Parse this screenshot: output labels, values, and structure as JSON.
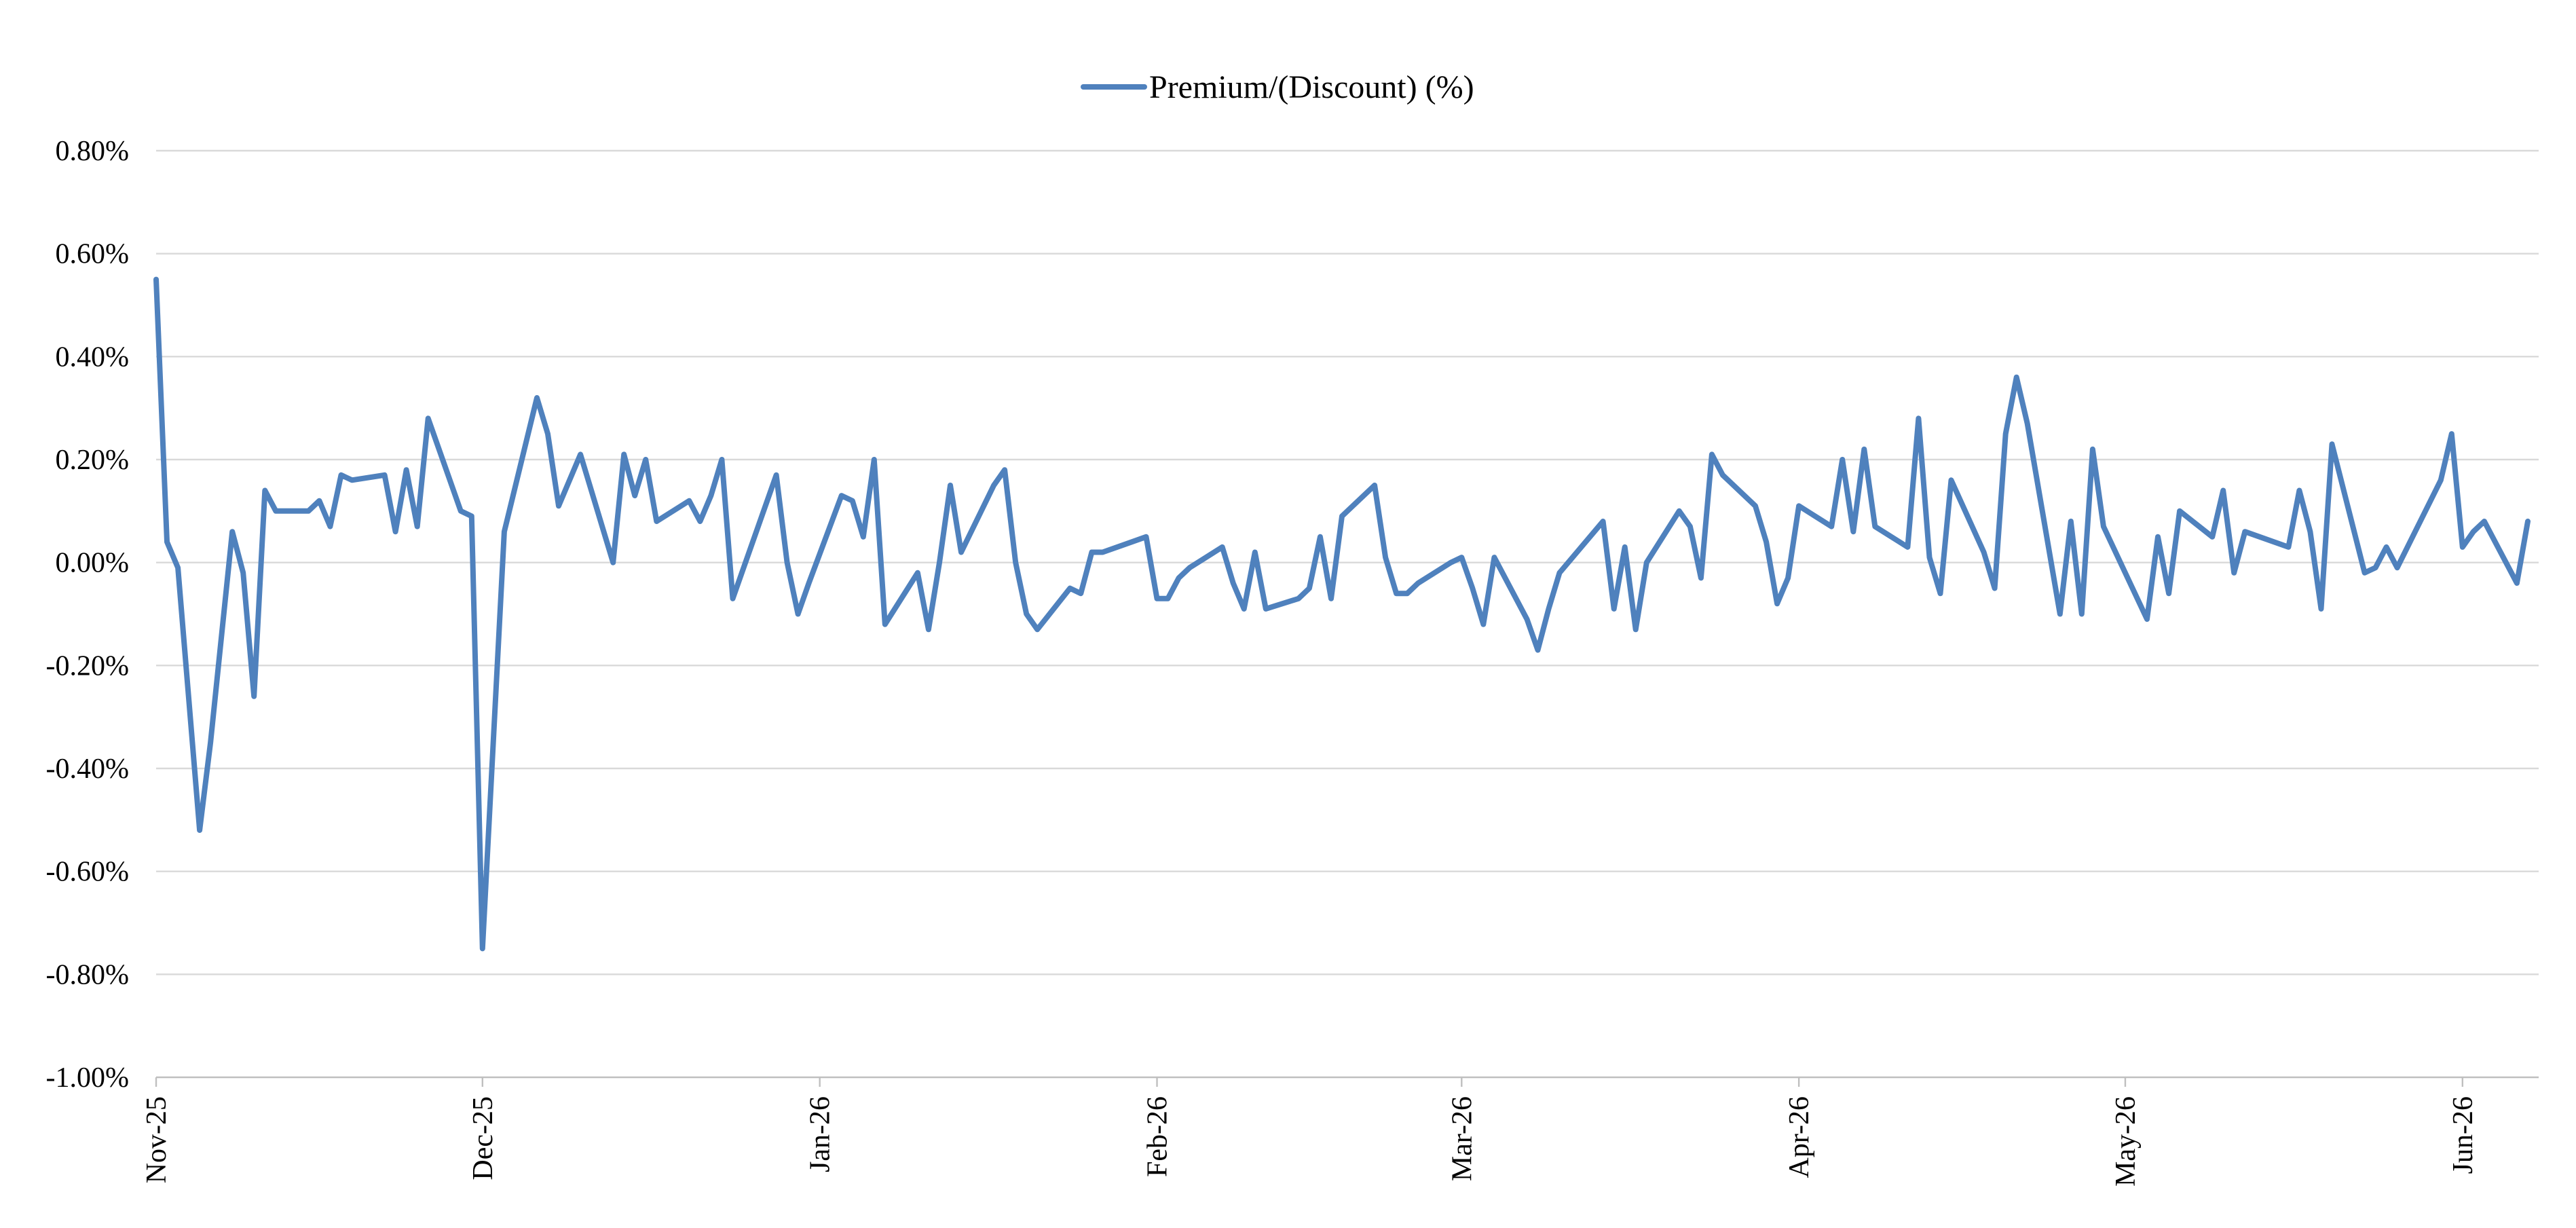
{
  "chart_data": {
    "type": "line",
    "title": "",
    "xlabel": "",
    "ylabel": "",
    "legend": {
      "position": "top-center",
      "entries": [
        "Premium/(Discount) (%)"
      ]
    },
    "series_color": "#4f81bd",
    "grid": true,
    "x_range": [
      "2025-11-01",
      "2026-06-08"
    ],
    "ylim": [
      -1.0,
      0.8
    ],
    "y_ticks": [
      {
        "value": 0.8,
        "label": "0.80%"
      },
      {
        "value": 0.6,
        "label": "0.60%"
      },
      {
        "value": 0.4,
        "label": "0.40%"
      },
      {
        "value": 0.2,
        "label": "0.20%"
      },
      {
        "value": 0.0,
        "label": "0.00%"
      },
      {
        "value": -0.2,
        "label": "-0.20%"
      },
      {
        "value": -0.4,
        "label": "-0.40%"
      },
      {
        "value": -0.6,
        "label": "-0.60%"
      },
      {
        "value": -0.8,
        "label": "-0.80%"
      },
      {
        "value": -1.0,
        "label": "-1.00%"
      }
    ],
    "x_ticks": [
      {
        "date": "2025-11-01",
        "label": "Nov-25"
      },
      {
        "date": "2025-12-01",
        "label": "Dec-25"
      },
      {
        "date": "2026-01-01",
        "label": "Jan-26"
      },
      {
        "date": "2026-02-01",
        "label": "Feb-26"
      },
      {
        "date": "2026-03-01",
        "label": "Mar-26"
      },
      {
        "date": "2026-04-01",
        "label": "Apr-26"
      },
      {
        "date": "2026-05-01",
        "label": "May-26"
      },
      {
        "date": "2026-06-01",
        "label": "Jun-26"
      }
    ],
    "series": [
      {
        "name": "Premium/(Discount) (%)",
        "points": [
          [
            "2025-11-01",
            0.55
          ],
          [
            "2025-11-02",
            0.04
          ],
          [
            "2025-11-03",
            -0.01
          ],
          [
            "2025-11-05",
            -0.52
          ],
          [
            "2025-11-06",
            -0.35
          ],
          [
            "2025-11-08",
            0.06
          ],
          [
            "2025-11-09",
            -0.02
          ],
          [
            "2025-11-10",
            -0.26
          ],
          [
            "2025-11-11",
            0.14
          ],
          [
            "2025-11-12",
            0.1
          ],
          [
            "2025-11-15",
            0.1
          ],
          [
            "2025-11-16",
            0.12
          ],
          [
            "2025-11-17",
            0.07
          ],
          [
            "2025-11-18",
            0.17
          ],
          [
            "2025-11-19",
            0.16
          ],
          [
            "2025-11-22",
            0.17
          ],
          [
            "2025-11-23",
            0.06
          ],
          [
            "2025-11-24",
            0.18
          ],
          [
            "2025-11-25",
            0.07
          ],
          [
            "2025-11-26",
            0.28
          ],
          [
            "2025-11-29",
            0.1
          ],
          [
            "2025-11-30",
            0.09
          ],
          [
            "2025-12-01",
            -0.75
          ],
          [
            "2025-12-03",
            0.06
          ],
          [
            "2025-12-06",
            0.32
          ],
          [
            "2025-12-07",
            0.25
          ],
          [
            "2025-12-08",
            0.11
          ],
          [
            "2025-12-10",
            0.21
          ],
          [
            "2025-12-13",
            0.0
          ],
          [
            "2025-12-14",
            0.21
          ],
          [
            "2025-12-15",
            0.13
          ],
          [
            "2025-12-16",
            0.2
          ],
          [
            "2025-12-17",
            0.08
          ],
          [
            "2025-12-20",
            0.12
          ],
          [
            "2025-12-21",
            0.08
          ],
          [
            "2025-12-22",
            0.13
          ],
          [
            "2025-12-23",
            0.2
          ],
          [
            "2025-12-24",
            -0.07
          ],
          [
            "2025-12-28",
            0.17
          ],
          [
            "2025-12-29",
            0.0
          ],
          [
            "2025-12-30",
            -0.1
          ],
          [
            "2025-12-31",
            -0.04
          ],
          [
            "2026-01-03",
            0.13
          ],
          [
            "2026-01-04",
            0.12
          ],
          [
            "2026-01-05",
            0.05
          ],
          [
            "2026-01-06",
            0.2
          ],
          [
            "2026-01-07",
            -0.12
          ],
          [
            "2026-01-10",
            -0.02
          ],
          [
            "2026-01-11",
            -0.13
          ],
          [
            "2026-01-12",
            0.0
          ],
          [
            "2026-01-13",
            0.15
          ],
          [
            "2026-01-14",
            0.02
          ],
          [
            "2026-01-17",
            0.15
          ],
          [
            "2026-01-18",
            0.18
          ],
          [
            "2026-01-19",
            0.0
          ],
          [
            "2026-01-20",
            -0.1
          ],
          [
            "2026-01-21",
            -0.13
          ],
          [
            "2026-01-24",
            -0.05
          ],
          [
            "2026-01-25",
            -0.06
          ],
          [
            "2026-01-26",
            0.02
          ],
          [
            "2026-01-27",
            0.02
          ],
          [
            "2026-01-31",
            0.05
          ],
          [
            "2026-02-01",
            -0.07
          ],
          [
            "2026-02-02",
            -0.07
          ],
          [
            "2026-02-03",
            -0.03
          ],
          [
            "2026-02-04",
            -0.01
          ],
          [
            "2026-02-07",
            0.03
          ],
          [
            "2026-02-08",
            -0.04
          ],
          [
            "2026-02-09",
            -0.09
          ],
          [
            "2026-02-10",
            0.02
          ],
          [
            "2026-02-11",
            -0.09
          ],
          [
            "2026-02-14",
            -0.07
          ],
          [
            "2026-02-15",
            -0.05
          ],
          [
            "2026-02-16",
            0.05
          ],
          [
            "2026-02-17",
            -0.07
          ],
          [
            "2026-02-18",
            0.09
          ],
          [
            "2026-02-21",
            0.15
          ],
          [
            "2026-02-22",
            0.01
          ],
          [
            "2026-02-23",
            -0.06
          ],
          [
            "2026-02-24",
            -0.06
          ],
          [
            "2026-02-25",
            -0.04
          ],
          [
            "2026-02-28",
            0.0
          ],
          [
            "2026-03-01",
            0.01
          ],
          [
            "2026-03-02",
            -0.05
          ],
          [
            "2026-03-03",
            -0.12
          ],
          [
            "2026-03-04",
            0.01
          ],
          [
            "2026-03-07",
            -0.11
          ],
          [
            "2026-03-08",
            -0.17
          ],
          [
            "2026-03-09",
            -0.09
          ],
          [
            "2026-03-10",
            -0.02
          ],
          [
            "2026-03-14",
            0.08
          ],
          [
            "2026-03-15",
            -0.09
          ],
          [
            "2026-03-16",
            0.03
          ],
          [
            "2026-03-17",
            -0.13
          ],
          [
            "2026-03-18",
            0.0
          ],
          [
            "2026-03-21",
            0.1
          ],
          [
            "2026-03-22",
            0.07
          ],
          [
            "2026-03-23",
            -0.03
          ],
          [
            "2026-03-24",
            0.21
          ],
          [
            "2026-03-25",
            0.17
          ],
          [
            "2026-03-28",
            0.11
          ],
          [
            "2026-03-29",
            0.04
          ],
          [
            "2026-03-30",
            -0.08
          ],
          [
            "2026-03-31",
            -0.03
          ],
          [
            "2026-04-01",
            0.11
          ],
          [
            "2026-04-04",
            0.07
          ],
          [
            "2026-04-05",
            0.2
          ],
          [
            "2026-04-06",
            0.06
          ],
          [
            "2026-04-07",
            0.22
          ],
          [
            "2026-04-08",
            0.07
          ],
          [
            "2026-04-11",
            0.03
          ],
          [
            "2026-04-12",
            0.28
          ],
          [
            "2026-04-13",
            0.01
          ],
          [
            "2026-04-14",
            -0.06
          ],
          [
            "2026-04-15",
            0.16
          ],
          [
            "2026-04-18",
            0.02
          ],
          [
            "2026-04-19",
            -0.05
          ],
          [
            "2026-04-20",
            0.25
          ],
          [
            "2026-04-21",
            0.36
          ],
          [
            "2026-04-22",
            0.27
          ],
          [
            "2026-04-25",
            -0.1
          ],
          [
            "2026-04-26",
            0.08
          ],
          [
            "2026-04-27",
            -0.1
          ],
          [
            "2026-04-28",
            0.22
          ],
          [
            "2026-04-29",
            0.07
          ],
          [
            "2026-05-03",
            -0.11
          ],
          [
            "2026-05-04",
            0.05
          ],
          [
            "2026-05-05",
            -0.06
          ],
          [
            "2026-05-06",
            0.1
          ],
          [
            "2026-05-09",
            0.05
          ],
          [
            "2026-05-10",
            0.14
          ],
          [
            "2026-05-11",
            -0.02
          ],
          [
            "2026-05-12",
            0.06
          ],
          [
            "2026-05-16",
            0.03
          ],
          [
            "2026-05-17",
            0.14
          ],
          [
            "2026-05-18",
            0.06
          ],
          [
            "2026-05-19",
            -0.09
          ],
          [
            "2026-05-20",
            0.23
          ],
          [
            "2026-05-23",
            -0.02
          ],
          [
            "2026-05-24",
            -0.01
          ],
          [
            "2026-05-25",
            0.03
          ],
          [
            "2026-05-26",
            -0.01
          ],
          [
            "2026-05-30",
            0.16
          ],
          [
            "2026-05-31",
            0.25
          ],
          [
            "2026-06-01",
            0.03
          ],
          [
            "2026-06-02",
            0.06
          ],
          [
            "2026-06-03",
            0.08
          ],
          [
            "2026-06-06",
            -0.04
          ],
          [
            "2026-06-07",
            0.08
          ]
        ]
      }
    ]
  }
}
